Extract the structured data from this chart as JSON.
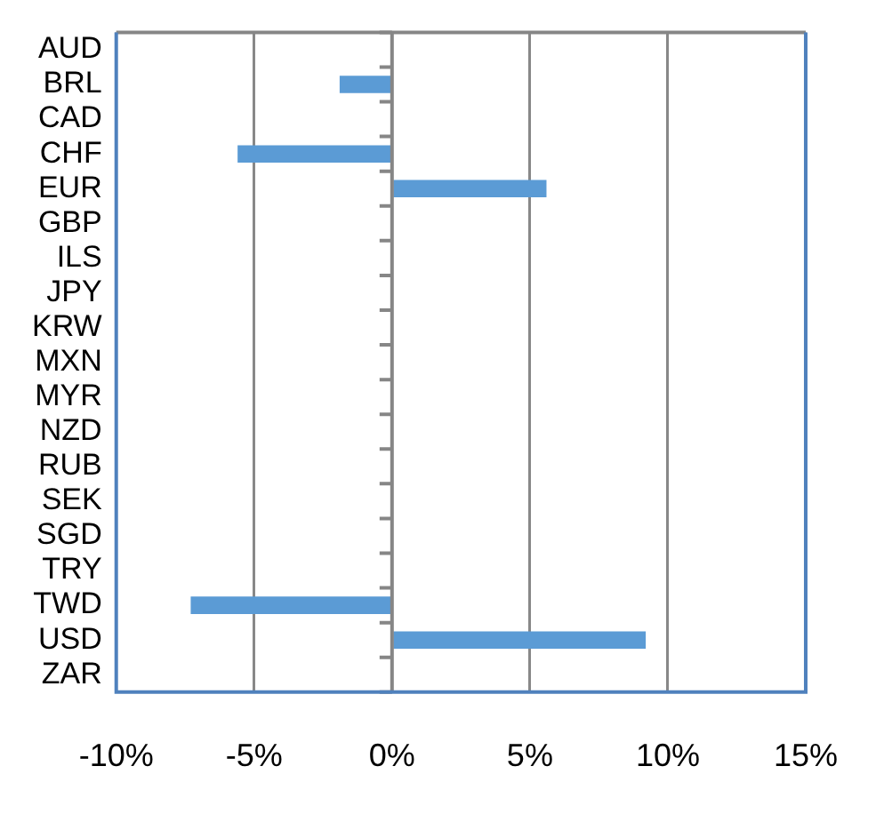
{
  "chart_data": {
    "type": "bar",
    "orientation": "horizontal",
    "categories": [
      "AUD",
      "BRL",
      "CAD",
      "CHF",
      "EUR",
      "GBP",
      "ILS",
      "JPY",
      "KRW",
      "MXN",
      "MYR",
      "NZD",
      "RUB",
      "SEK",
      "SGD",
      "TRY",
      "TWD",
      "USD",
      "ZAR"
    ],
    "values": [
      null,
      -1.9,
      null,
      -5.6,
      5.6,
      null,
      null,
      null,
      null,
      null,
      null,
      null,
      null,
      null,
      null,
      null,
      -7.3,
      9.2,
      null
    ],
    "color": "#5b9bd5",
    "xlim": [
      -10,
      15
    ],
    "xticks": [
      {
        "value": -10,
        "label": "-10%"
      },
      {
        "value": -5,
        "label": "-5%"
      },
      {
        "value": 0,
        "label": "0%"
      },
      {
        "value": 5,
        "label": "5%"
      },
      {
        "value": 10,
        "label": "10%"
      },
      {
        "value": 15,
        "label": "15%"
      }
    ],
    "grid": "x",
    "legend": false
  }
}
